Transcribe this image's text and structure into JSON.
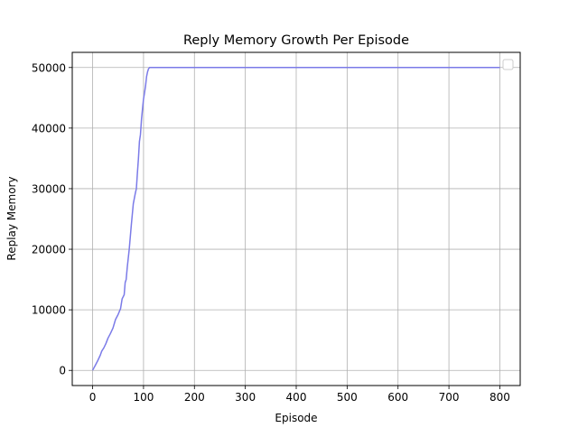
{
  "chart_data": {
    "type": "line",
    "title": "Reply Memory Growth Per Episode",
    "xlabel": "Episode",
    "ylabel": "Replay Memory",
    "xlim": [
      -40,
      840
    ],
    "ylim": [
      -2500,
      52500
    ],
    "xticks": [
      0,
      100,
      200,
      300,
      400,
      500,
      600,
      700,
      800
    ],
    "yticks": [
      0,
      10000,
      20000,
      30000,
      40000,
      50000
    ],
    "grid": true,
    "legend": "top-right",
    "legend_entries": [],
    "series": [
      {
        "color": "#7b7be8",
        "x": [
          0,
          5,
          10,
          15,
          18,
          22,
          26,
          30,
          35,
          40,
          45,
          50,
          55,
          58,
          62,
          64,
          66,
          68,
          72,
          76,
          80,
          84,
          86,
          88,
          90,
          92,
          94,
          96,
          98,
          100,
          102,
          104,
          106,
          108,
          110,
          112,
          114,
          115,
          120,
          200,
          300,
          400,
          500,
          600,
          700,
          800
        ],
        "values": [
          0,
          800,
          1600,
          2500,
          3200,
          3700,
          4400,
          5300,
          6100,
          7000,
          8400,
          9200,
          10200,
          11800,
          12500,
          14500,
          15000,
          17000,
          20000,
          24000,
          27500,
          29300,
          30000,
          32500,
          35000,
          37800,
          38900,
          41500,
          43200,
          44800,
          45800,
          47000,
          48500,
          49300,
          49800,
          50000,
          50000,
          50000,
          50000,
          50000,
          50000,
          50000,
          50000,
          50000,
          50000,
          50000
        ]
      }
    ]
  }
}
